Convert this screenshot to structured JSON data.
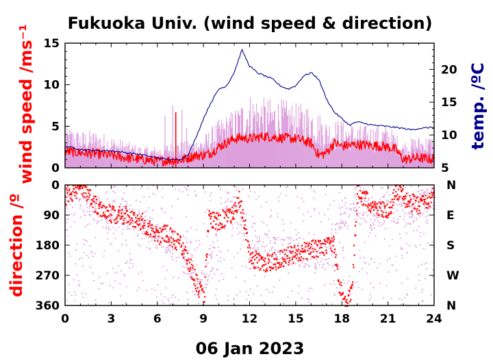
{
  "colors": {
    "wind_mean": "#ff0000",
    "wind_gust": "#dda0dd",
    "temperature": "#00008b",
    "dir_scatter": "#dda0dd",
    "dir_main": "#ff0000",
    "axis": "#000000"
  },
  "chart_data": [
    {
      "type": "line",
      "title": "Fukuoka Univ. (wind speed & direction)",
      "ylabel": "wind speed /ms⁻¹",
      "y2label": "temp. /ºC",
      "xlabel": "06 Jan 2023",
      "xlim": [
        0,
        24
      ],
      "ylim": [
        0,
        15
      ],
      "y2lim": [
        5,
        24
      ],
      "xticks": [
        "0",
        "3",
        "6",
        "9",
        "12",
        "15",
        "18",
        "21",
        "24"
      ],
      "yticks": [
        "0",
        "5",
        "10",
        "15"
      ],
      "y2ticks": [
        "5",
        "10",
        "15",
        "20"
      ],
      "series": [
        {
          "role": "wind_speed_mean",
          "x": [
            0,
            1,
            2,
            3,
            4,
            5,
            6,
            7,
            7.5,
            8,
            8.5,
            9,
            9.5,
            10,
            10.5,
            11,
            11.5,
            12,
            13,
            14,
            15,
            16,
            16.5,
            17,
            17.5,
            18,
            19,
            20,
            21,
            21.5,
            22,
            23,
            24
          ],
          "values": [
            2.0,
            1.8,
            1.7,
            1.5,
            1.2,
            1.0,
            0.8,
            0.9,
            0.9,
            1.2,
            1.5,
            1.5,
            1.8,
            2.5,
            3.0,
            3.5,
            3.6,
            3.5,
            3.8,
            3.6,
            3.5,
            3.0,
            1.5,
            1.8,
            3.0,
            2.6,
            2.8,
            2.7,
            2.5,
            2.2,
            1.0,
            1.2,
            1.0
          ]
        },
        {
          "role": "wind_speed_gust",
          "x": [
            0,
            1,
            2,
            3,
            4,
            5,
            6,
            7,
            8,
            9,
            10,
            11,
            12,
            13,
            14,
            15,
            16,
            17,
            18,
            19,
            20,
            21,
            22,
            23,
            24
          ],
          "values": [
            4.0,
            3.5,
            3.5,
            3.0,
            2.5,
            2.0,
            2.0,
            2.5,
            2.5,
            3.0,
            4.5,
            5.5,
            7.0,
            6.5,
            6.5,
            6.0,
            6.0,
            4.5,
            4.5,
            4.0,
            4.0,
            4.0,
            2.5,
            3.0,
            3.0
          ]
        },
        {
          "role": "temperature",
          "axis": "y2",
          "x": [
            0,
            1,
            2,
            3,
            4,
            5,
            6,
            7,
            7.5,
            8,
            8.5,
            9,
            9.5,
            10,
            10.5,
            11,
            11.5,
            12,
            12.5,
            13,
            13.5,
            14,
            14.5,
            15,
            15.5,
            16,
            16.5,
            17,
            17.5,
            18,
            18.5,
            19,
            20,
            21,
            22,
            22.5,
            23,
            24
          ],
          "values": [
            8.3,
            7.8,
            7.6,
            7.6,
            7.3,
            7.0,
            6.5,
            6.2,
            6.3,
            7.0,
            9.5,
            12.5,
            15.0,
            17.0,
            17.5,
            19.5,
            23.0,
            20.5,
            19.5,
            19.0,
            18.5,
            17.5,
            17.0,
            17.5,
            19.0,
            19.5,
            18.5,
            15.5,
            13.5,
            12.5,
            11.5,
            12.0,
            11.5,
            11.3,
            11.0,
            10.8,
            11.0,
            11.2
          ]
        }
      ]
    },
    {
      "type": "scatter",
      "ylabel": "direction /º",
      "xlim": [
        0,
        24
      ],
      "ylim": [
        0,
        360
      ],
      "xticks": [
        "0",
        "3",
        "6",
        "9",
        "12",
        "15",
        "18",
        "21",
        "24"
      ],
      "yticks": [
        "0",
        "90",
        "180",
        "270",
        "360"
      ],
      "compass": [
        "N",
        "E",
        "S",
        "W",
        "N"
      ],
      "series": [
        {
          "role": "direction_mean",
          "x": [
            0,
            0.5,
            1,
            1.5,
            2,
            2.5,
            3,
            4,
            5,
            6,
            6.5,
            7,
            7.5,
            8,
            8.5,
            9,
            9.3,
            9.8,
            10.5,
            11,
            11.3,
            11.8,
            12,
            13,
            14,
            15,
            16,
            17,
            17.4,
            17.8,
            18.2,
            18.6,
            19,
            20,
            21,
            21.5,
            22,
            23,
            24
          ],
          "values": [
            30,
            20,
            10,
            25,
            60,
            70,
            85,
            90,
            110,
            150,
            140,
            160,
            180,
            230,
            290,
            340,
            100,
            110,
            90,
            80,
            40,
            160,
            220,
            230,
            220,
            200,
            190,
            180,
            175,
            300,
            350,
            310,
            20,
            60,
            80,
            10,
            40,
            60,
            30
          ]
        },
        {
          "role": "direction_scatter",
          "x": [
            0,
            1,
            2,
            3,
            4,
            5,
            6,
            7,
            8,
            9,
            10,
            11,
            12,
            13,
            14,
            15,
            16,
            17,
            18,
            19,
            20,
            21,
            22,
            23,
            24
          ],
          "values": [
            60,
            40,
            70,
            100,
            90,
            120,
            150,
            170,
            240,
            300,
            100,
            60,
            200,
            180,
            200,
            190,
            210,
            200,
            80,
            70,
            90,
            60,
            80,
            60,
            40
          ]
        }
      ]
    }
  ]
}
